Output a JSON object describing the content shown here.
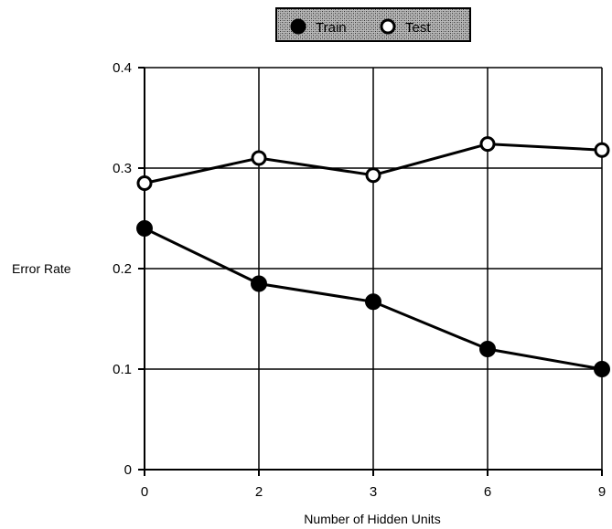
{
  "chart_data": {
    "type": "line",
    "categories": [
      "0",
      "2",
      "3",
      "6",
      "9"
    ],
    "series": [
      {
        "name": "Train",
        "values": [
          0.24,
          0.185,
          0.167,
          0.12,
          0.1
        ],
        "marker": "filled-circle",
        "color": "#000000"
      },
      {
        "name": "Test",
        "values": [
          0.285,
          0.31,
          0.293,
          0.324,
          0.318
        ],
        "marker": "open-circle",
        "color": "#000000"
      }
    ],
    "xlabel": "Number of Hidden Units",
    "ylabel": "Error Rate",
    "ylim": [
      0,
      0.4
    ],
    "yticks": [
      "0",
      "0.1",
      "0.2",
      "0.3",
      "0.4"
    ],
    "grid": true,
    "legend_position": "top-center",
    "legend_background": "#9a9a9a"
  }
}
